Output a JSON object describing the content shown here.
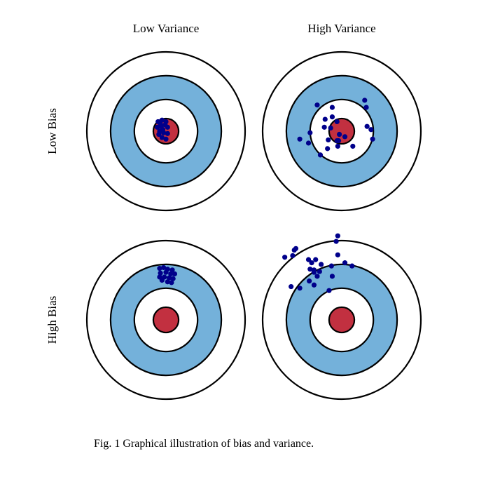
{
  "columns": [
    "Low Variance",
    "High Variance"
  ],
  "rows": [
    "Low Bias",
    "High Bias"
  ],
  "caption": "Fig. 1 Graphical illustration of bias and variance.",
  "colors": {
    "ring_blue": "#74b1da",
    "bullseye_red": "#c23040",
    "dot": "#00008b",
    "stroke": "#000000"
  },
  "chart_data": {
    "type": "scatter",
    "note": "dot coordinates in target units (outer ring radius = 1, y up)",
    "ring_radii": [
      1,
      0.7,
      0.4,
      0.16
    ],
    "panels": [
      {
        "row": "Low Bias",
        "column": "Low Variance",
        "points": [
          [
            -0.1,
            0.12
          ],
          [
            -0.05,
            0.14
          ],
          [
            0.0,
            0.12
          ],
          [
            -0.11,
            0.05
          ],
          [
            -0.06,
            0.06
          ],
          [
            0.02,
            0.05
          ],
          [
            -0.08,
            0.0
          ],
          [
            -0.03,
            -0.02
          ],
          [
            0.02,
            -0.03
          ],
          [
            -0.05,
            -0.08
          ],
          [
            0.0,
            -0.1
          ],
          [
            -0.09,
            -0.04
          ],
          [
            -0.04,
            0.02
          ],
          [
            -0.07,
            0.09
          ],
          [
            -0.01,
            0.08
          ]
        ]
      },
      {
        "row": "Low Bias",
        "column": "High Variance",
        "points": [
          [
            -0.31,
            0.33
          ],
          [
            -0.12,
            0.3
          ],
          [
            0.29,
            0.39
          ],
          [
            0.31,
            0.3
          ],
          [
            -0.12,
            0.18
          ],
          [
            -0.21,
            0.15
          ],
          [
            -0.06,
            0.12
          ],
          [
            -0.22,
            0.05
          ],
          [
            -0.14,
            0.04
          ],
          [
            -0.4,
            -0.02
          ],
          [
            0.32,
            0.06
          ],
          [
            0.37,
            0.02
          ],
          [
            -0.53,
            -0.1
          ],
          [
            -0.42,
            -0.15
          ],
          [
            -0.03,
            -0.04
          ],
          [
            0.04,
            -0.07
          ],
          [
            -0.17,
            -0.11
          ],
          [
            -0.06,
            -0.12
          ],
          [
            -0.04,
            -0.12
          ],
          [
            0.39,
            -0.1
          ],
          [
            -0.18,
            -0.22
          ],
          [
            -0.05,
            -0.19
          ],
          [
            0.14,
            -0.19
          ],
          [
            -0.27,
            -0.3
          ]
        ]
      },
      {
        "row": "High Bias",
        "column": "Low Variance",
        "points": [
          [
            -0.08,
            0.65
          ],
          [
            -0.03,
            0.66
          ],
          [
            0.02,
            0.64
          ],
          [
            0.08,
            0.63
          ],
          [
            -0.07,
            0.59
          ],
          [
            0.0,
            0.6
          ],
          [
            0.06,
            0.58
          ],
          [
            0.11,
            0.58
          ],
          [
            -0.08,
            0.54
          ],
          [
            -0.02,
            0.54
          ],
          [
            0.04,
            0.53
          ],
          [
            0.09,
            0.52
          ],
          [
            0.02,
            0.48
          ],
          [
            0.07,
            0.47
          ],
          [
            -0.05,
            0.5
          ]
        ]
      },
      {
        "row": "High Bias",
        "column": "High Variance",
        "points": [
          [
            -0.05,
            1.06
          ],
          [
            -0.07,
            0.99
          ],
          [
            -0.58,
            0.9
          ],
          [
            -0.6,
            0.88
          ],
          [
            -0.72,
            0.79
          ],
          [
            -0.62,
            0.81
          ],
          [
            -0.05,
            0.82
          ],
          [
            -0.42,
            0.76
          ],
          [
            -0.33,
            0.76
          ],
          [
            -0.38,
            0.72
          ],
          [
            -0.26,
            0.7
          ],
          [
            -0.13,
            0.68
          ],
          [
            0.04,
            0.72
          ],
          [
            0.13,
            0.68
          ],
          [
            -0.4,
            0.64
          ],
          [
            -0.35,
            0.63
          ],
          [
            -0.35,
            0.6
          ],
          [
            -0.28,
            0.61
          ],
          [
            -0.31,
            0.55
          ],
          [
            -0.12,
            0.55
          ],
          [
            -0.41,
            0.49
          ],
          [
            -0.35,
            0.44
          ],
          [
            -0.64,
            0.42
          ],
          [
            -0.53,
            0.4
          ],
          [
            -0.16,
            0.37
          ]
        ]
      }
    ]
  }
}
